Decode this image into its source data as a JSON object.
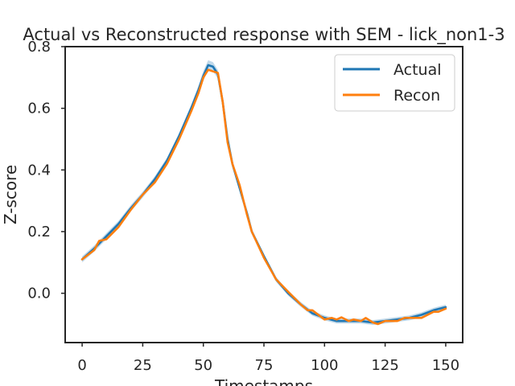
{
  "chart_data": {
    "type": "line",
    "title": "Actual vs Reconstructed response with SEM - lick_non1-3",
    "xlabel": "Timestamps",
    "ylabel": "Z-score",
    "xlim": [
      -7,
      157
    ],
    "ylim": [
      -0.16,
      0.8
    ],
    "xticks": [
      0,
      25,
      50,
      75,
      100,
      125,
      150
    ],
    "yticks": [
      0.0,
      0.2,
      0.4,
      0.6,
      0.8
    ],
    "xtick_labels": [
      "0",
      "25",
      "50",
      "75",
      "100",
      "125",
      "150"
    ],
    "ytick_labels": [
      "0.0",
      "0.2",
      "0.4",
      "0.6",
      "0.8"
    ],
    "grid": false,
    "legend_position": "top-right",
    "series": [
      {
        "name": "Actual",
        "color": "#1f77b4",
        "x": [
          0,
          5,
          10,
          15,
          20,
          25,
          30,
          35,
          40,
          45,
          48,
          50,
          52,
          54,
          56,
          58,
          60,
          62,
          65,
          68,
          70,
          75,
          80,
          85,
          90,
          95,
          100,
          105,
          110,
          115,
          120,
          125,
          130,
          135,
          140,
          145,
          150
        ],
        "y": [
          0.11,
          0.145,
          0.185,
          0.225,
          0.275,
          0.32,
          0.37,
          0.43,
          0.51,
          0.6,
          0.66,
          0.705,
          0.74,
          0.735,
          0.71,
          0.62,
          0.5,
          0.42,
          0.34,
          0.26,
          0.2,
          0.12,
          0.045,
          0.0,
          -0.035,
          -0.065,
          -0.08,
          -0.09,
          -0.09,
          -0.09,
          -0.095,
          -0.09,
          -0.085,
          -0.08,
          -0.07,
          -0.055,
          -0.045
        ],
        "sem": [
          0.01,
          0.01,
          0.01,
          0.01,
          0.01,
          0.01,
          0.01,
          0.01,
          0.01,
          0.012,
          0.014,
          0.016,
          0.016,
          0.015,
          0.014,
          0.012,
          0.01,
          0.01,
          0.009,
          0.009,
          0.008,
          0.008,
          0.008,
          0.008,
          0.008,
          0.008,
          0.008,
          0.008,
          0.008,
          0.008,
          0.008,
          0.008,
          0.008,
          0.008,
          0.008,
          0.008,
          0.008
        ]
      },
      {
        "name": "Recon",
        "color": "#ff7f0e",
        "x": [
          0,
          5,
          7,
          10,
          15,
          20,
          23,
          25,
          30,
          35,
          40,
          45,
          48,
          50,
          52,
          54,
          56,
          58,
          60,
          62,
          65,
          68,
          70,
          75,
          80,
          85,
          90,
          93,
          95,
          100,
          103,
          105,
          107,
          110,
          112,
          115,
          117,
          120,
          122,
          125,
          130,
          133,
          135,
          140,
          145,
          147,
          150
        ],
        "y": [
          0.11,
          0.14,
          0.17,
          0.175,
          0.215,
          0.27,
          0.3,
          0.32,
          0.36,
          0.42,
          0.5,
          0.59,
          0.65,
          0.7,
          0.725,
          0.72,
          0.715,
          0.62,
          0.49,
          0.42,
          0.35,
          0.255,
          0.2,
          0.115,
          0.045,
          0.005,
          -0.035,
          -0.055,
          -0.055,
          -0.085,
          -0.08,
          -0.085,
          -0.078,
          -0.09,
          -0.085,
          -0.09,
          -0.08,
          -0.095,
          -0.1,
          -0.09,
          -0.09,
          -0.08,
          -0.08,
          -0.08,
          -0.06,
          -0.06,
          -0.05
        ]
      }
    ]
  }
}
